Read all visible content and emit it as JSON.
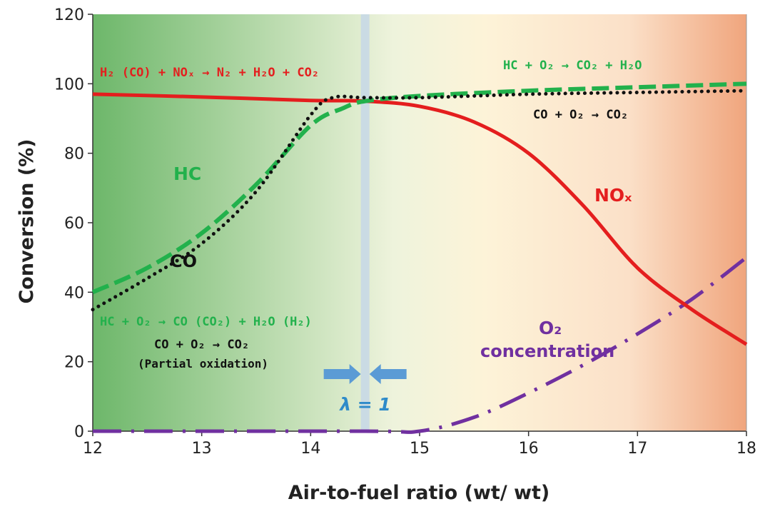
{
  "chart_data": {
    "type": "line",
    "xlabel": "Air-to-fuel ratio (wt/ wt)",
    "ylabel": "Conversion (%)",
    "xlim": [
      12,
      18
    ],
    "ylim": [
      0,
      120
    ],
    "xticks": [
      12,
      13,
      14,
      15,
      16,
      17,
      18
    ],
    "yticks": [
      0,
      20,
      40,
      60,
      80,
      100,
      120
    ],
    "grid": false,
    "series": [
      {
        "name": "HC",
        "color": "#22b14c",
        "style": "dashed",
        "x": [
          12,
          12.5,
          13,
          13.5,
          14,
          14.3,
          14.5,
          15,
          16,
          17,
          18
        ],
        "y": [
          40,
          47,
          57,
          71,
          88,
          93,
          95,
          96.5,
          98,
          99,
          100
        ]
      },
      {
        "name": "CO",
        "color": "#111111",
        "style": "dotted",
        "x": [
          12,
          12.5,
          13,
          13.5,
          14,
          14.2,
          14.5,
          15,
          16,
          17,
          18
        ],
        "y": [
          35,
          44,
          54,
          69,
          91,
          96,
          96,
          96,
          97,
          97.5,
          98
        ]
      },
      {
        "name": "NOx",
        "color": "#e41e1e",
        "style": "solid",
        "x": [
          12,
          13,
          14,
          14.5,
          15,
          15.5,
          16,
          16.5,
          17,
          17.5,
          18
        ],
        "y": [
          97,
          96.2,
          95.2,
          95,
          93.5,
          89,
          80,
          65,
          47,
          35,
          25
        ]
      },
      {
        "name": "O2 concentration",
        "color": "#7030a0",
        "style": "dashdot",
        "x": [
          12,
          14.5,
          15,
          15.5,
          16,
          16.5,
          17,
          17.5,
          18
        ],
        "y": [
          0,
          0,
          0,
          4,
          11,
          19,
          28,
          38,
          50
        ]
      }
    ],
    "lambda_line": {
      "x": 14.5,
      "label": "λ = 1"
    },
    "annotations": {
      "top_left": "H₂ (CO) + NOₓ → N₂ + H₂O + CO₂",
      "top_right_hc": "HC + O₂ → CO₂  + H₂O",
      "top_right_co": "CO + O₂ → CO₂",
      "bottom_left_hc": "HC + O₂ → CO (CO₂) + H₂O (H₂)",
      "bottom_left_co": "CO + O₂ → CO₂",
      "bottom_left_note": "(Partial oxidation)"
    },
    "series_labels": {
      "hc": "HC",
      "co": "CO",
      "nox": "NOₓ",
      "o2_line1": "O₂",
      "o2_line2": "concentration"
    },
    "colors": {
      "lean_green": "#6db76a",
      "stoich_cream": "#fdf3d8",
      "rich_orange": "#f0a57d",
      "lambda_band": "#c8d8e6",
      "lambda_arrow": "#5b9bd5",
      "lambda_text": "#2e8bc9",
      "annotation_red": "#e41e1e",
      "annotation_green": "#22b14c",
      "annotation_purple": "#7030a0"
    }
  }
}
